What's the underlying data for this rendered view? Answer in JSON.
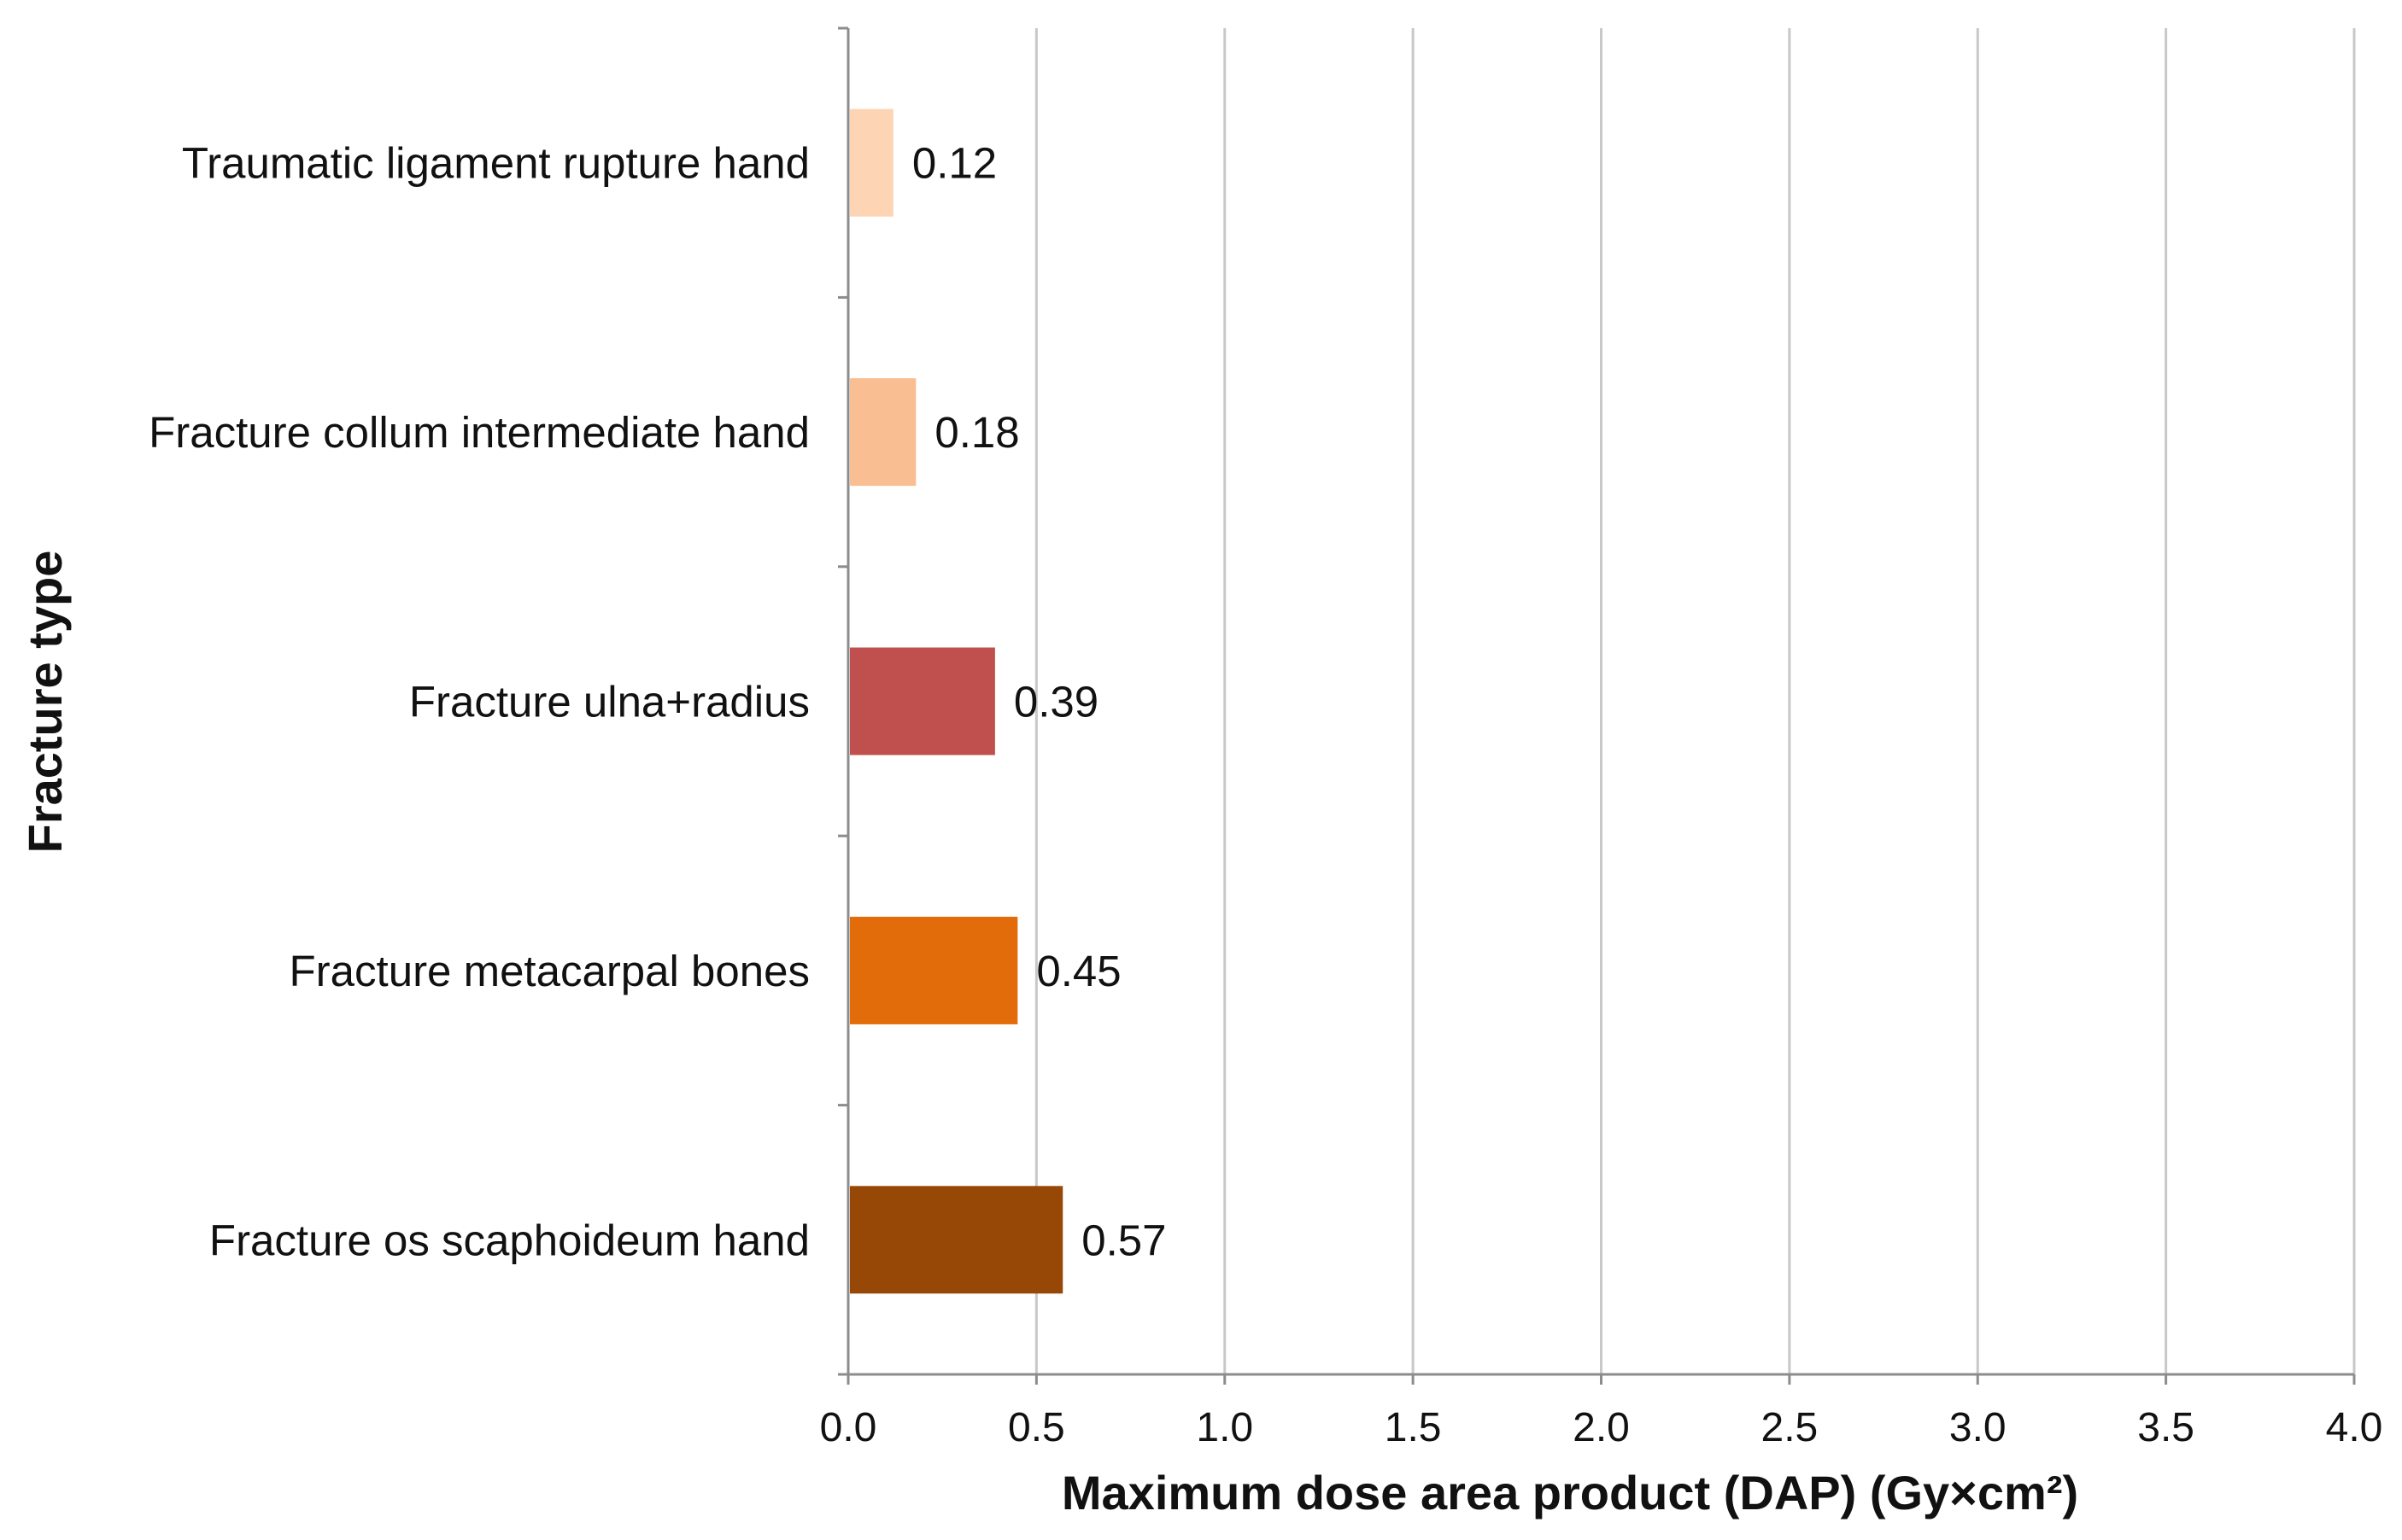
{
  "chart_data": {
    "type": "bar",
    "orientation": "horizontal",
    "title": "",
    "xlabel": "Maximum dose area product (DAP) (Gy×cm²)",
    "ylabel": "Fracture type",
    "xlim": [
      0,
      4
    ],
    "xticks": [
      "0.0",
      "0.5",
      "1.0",
      "1.5",
      "2.0",
      "2.5",
      "3.0",
      "3.5",
      "4.0"
    ],
    "grid": "vertical",
    "legend": "none",
    "categories": [
      "Traumatic ligament rupture hand",
      "Fracture collum intermediate hand",
      "Fracture ulna+radius",
      "Fracture metacarpal bones",
      "Fracture os scaphoideum hand"
    ],
    "values": [
      0.12,
      0.18,
      0.39,
      0.45,
      0.57
    ],
    "value_labels": [
      "0.12",
      "0.18",
      "0.39",
      "0.45",
      "0.57"
    ],
    "colors": [
      "#FDD5B5",
      "#F9BE91",
      "#C0504D",
      "#E36C0A",
      "#974806"
    ]
  }
}
